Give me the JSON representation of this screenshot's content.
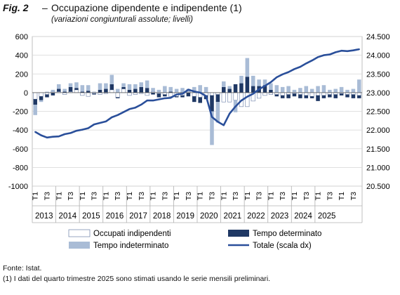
{
  "header": {
    "fig_label": "Fig. 2",
    "dash": "–",
    "title": "Occupazione dipendente e indipendente (1)",
    "subtitle": "(variazioni congiunturali assolute; livelli)"
  },
  "footer": {
    "source": "Fonte: Istat.",
    "note": "(1) I dati del quarto trimestre 2025 sono stimati usando le serie mensili preliminari."
  },
  "chart_data": {
    "type": "bar",
    "left_axis": {
      "min": -1000,
      "max": 600,
      "step": 200,
      "ticks": [
        600,
        400,
        200,
        0,
        -200,
        -400,
        -600,
        -800,
        -1000
      ]
    },
    "right_axis": {
      "min": 20.5,
      "max": 24.5,
      "ticks": [
        "24.500",
        "24.000",
        "23.500",
        "23.000",
        "22.500",
        "22.000",
        "21.500",
        "21.000",
        "20.500"
      ]
    },
    "years": [
      "2013",
      "2014",
      "2015",
      "2016",
      "2017",
      "2018",
      "2019",
      "2020",
      "2021",
      "2022",
      "2023",
      "2024",
      "2025"
    ],
    "quarter_labels": [
      "T1",
      "T3"
    ],
    "grid": true,
    "legend": {
      "placement": "bottom",
      "items": [
        {
          "name": "Occupati indipendenti",
          "key": "ind"
        },
        {
          "name": "Tempo determinato",
          "key": "det"
        },
        {
          "name": "Tempo indeterminato",
          "key": "indet"
        },
        {
          "name": "Totale (scala dx)",
          "key": "tot"
        }
      ]
    },
    "series": [
      {
        "name": "Occupati indipendenti",
        "key": "ind",
        "values": [
          -70,
          -40,
          -20,
          10,
          10,
          -20,
          10,
          30,
          -30,
          -40,
          -10,
          -20,
          -10,
          30,
          -50,
          40,
          -30,
          -20,
          -10,
          -30,
          10,
          -10,
          -20,
          -40,
          -40,
          -30,
          10,
          -40,
          -50,
          -30,
          -30,
          -20,
          -100,
          -100,
          -80,
          -150,
          -150,
          -90,
          -60,
          -30,
          -20,
          -20,
          -30,
          -20,
          -10,
          -20,
          -30,
          -40,
          -30,
          -30,
          -20,
          -20,
          -10,
          -20,
          -20,
          -30
        ]
      },
      {
        "name": "Tempo determinato",
        "key": "det",
        "values": [
          -60,
          -40,
          -30,
          -30,
          30,
          10,
          50,
          20,
          10,
          20,
          -10,
          30,
          40,
          60,
          -10,
          20,
          30,
          40,
          60,
          50,
          -20,
          -40,
          -20,
          10,
          -10,
          -20,
          -40,
          -60,
          -60,
          -40,
          -170,
          -80,
          60,
          40,
          90,
          100,
          170,
          70,
          70,
          80,
          30,
          -20,
          -30,
          -40,
          -30,
          -40,
          -30,
          -20,
          -60,
          -30,
          -30,
          -40,
          -20,
          -30,
          -40,
          -30
        ]
      },
      {
        "name": "Tempo indeterminato",
        "key": "indet",
        "values": [
          -110,
          -20,
          10,
          20,
          50,
          30,
          40,
          60,
          70,
          60,
          10,
          70,
          60,
          100,
          40,
          40,
          60,
          50,
          50,
          80,
          40,
          30,
          70,
          50,
          40,
          50,
          30,
          60,
          80,
          60,
          -360,
          -220,
          60,
          30,
          -130,
          80,
          200,
          110,
          70,
          60,
          70,
          80,
          60,
          70,
          30,
          50,
          70,
          40,
          70,
          80,
          30,
          40,
          60,
          30,
          40,
          140
        ]
      },
      {
        "name": "Totale (scala dx)",
        "key": "tot",
        "axis": "right",
        "values": [
          21.95,
          21.86,
          21.8,
          21.82,
          21.83,
          21.89,
          21.92,
          21.98,
          22.01,
          22.05,
          22.15,
          22.19,
          22.23,
          22.34,
          22.4,
          22.48,
          22.56,
          22.6,
          22.68,
          22.79,
          22.79,
          22.82,
          22.85,
          22.86,
          22.95,
          22.97,
          23.08,
          23.03,
          23.0,
          22.91,
          22.35,
          22.22,
          22.13,
          22.44,
          22.63,
          22.79,
          22.89,
          22.97,
          23.09,
          23.18,
          23.28,
          23.41,
          23.49,
          23.55,
          23.63,
          23.69,
          23.78,
          23.86,
          23.95,
          24.0,
          24.02,
          24.08,
          24.12,
          24.11,
          24.13,
          24.16
        ]
      }
    ]
  }
}
